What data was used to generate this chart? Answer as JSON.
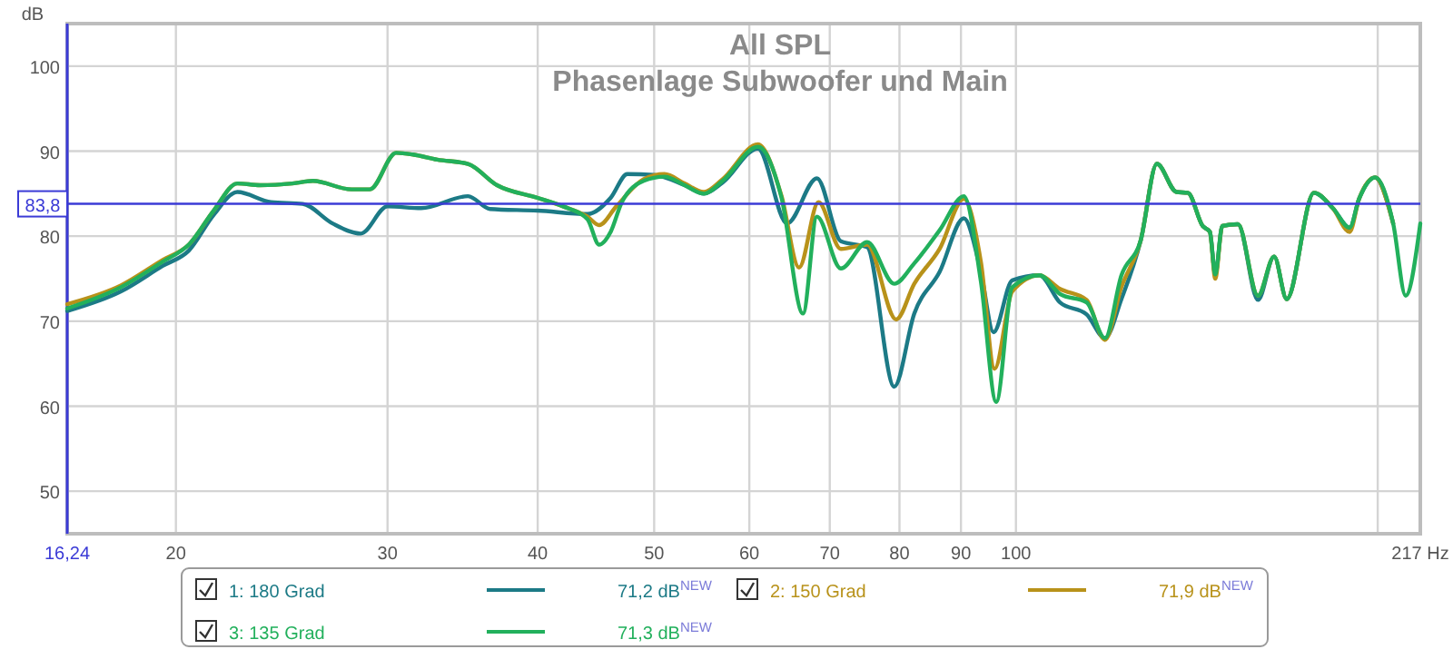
{
  "chart_data": {
    "type": "line",
    "title": "All SPL",
    "subtitle": "Phasenlage Subwoofer und Main",
    "ylabel": "dB",
    "log": "x",
    "xlim": [
      16.24,
      217
    ],
    "ylim": [
      45,
      105
    ],
    "xticks": [
      {
        "value": 16.24,
        "label": "16,24"
      },
      20,
      30,
      40,
      50,
      60,
      70,
      80,
      90,
      100,
      {
        "value": 200,
        "label": null
      },
      {
        "value": 217,
        "label": "217 Hz"
      }
    ],
    "yticks": [
      50,
      60,
      70,
      80,
      90,
      100
    ],
    "grid": true,
    "legend": "bottom",
    "line_style": "solid",
    "marker": "none",
    "ref_lines": [
      {
        "axis": "y",
        "value": 83.8,
        "label": "83,8",
        "color": "#3b3bd6"
      }
    ],
    "annotations": [
      "71,2 dB$^{NEW}$",
      "71,9 dB$^{NEW}$",
      "71,3 dB$^{NEW}$"
    ],
    "series": [
      {
        "name": "1: 180 Grad",
        "color": "#1c7a86",
        "x": [
          16.24,
          18,
          19.5,
          20.5,
          21.5,
          22.5,
          24,
          25.5,
          27,
          28.5,
          30,
          32,
          35,
          36.5,
          40,
          44,
          46,
          47.5,
          50,
          53,
          55,
          57,
          61,
          64.5,
          68.3,
          71.5,
          75.2,
          79.2,
          82.3,
          86.4,
          90.5,
          93.5,
          95.8,
          99.3,
          104.6,
          108.8,
          114.5,
          118.6,
          122.4,
          127,
          131,
          136,
          139,
          143,
          145,
          146.5,
          148.5,
          153,
          159,
          164,
          168,
          177,
          183.5,
          189.5,
          193,
          199,
          206
        ],
        "values": [
          71.2,
          73.5,
          76.5,
          78.3,
          82.5,
          85.2,
          84,
          83.8,
          81.5,
          80.3,
          83.5,
          83.3,
          84.7,
          83.2,
          83,
          82.6,
          84.5,
          87.3,
          87.2,
          86,
          85,
          86.3,
          90.3,
          81.5,
          86.8,
          79.4,
          78.7,
          62.3,
          70.9,
          75.8,
          82.1,
          75.8,
          68.7,
          74.8,
          75.4,
          72.2,
          70.8,
          68,
          72.6,
          79.5,
          88.5,
          85.2,
          85.1,
          81.2,
          80.5,
          75.5,
          81.2,
          81.4,
          72.5,
          77.6,
          72.6,
          85.1,
          83.3,
          81,
          84.4,
          86.9,
          81.5
        ]
      },
      {
        "name": "2: 150 Grad",
        "color": "#b8921a",
        "x": [
          16.24,
          18,
          19.5,
          20.5,
          21.5,
          22.5,
          23.5,
          25,
          26,
          28,
          29,
          30.5,
          31.5,
          33,
          35,
          37,
          40,
          42,
          44,
          45,
          46.5,
          49,
          51,
          53,
          55,
          57,
          61,
          63.8,
          66,
          68.5,
          71.5,
          75.2,
          79.5,
          82.3,
          86.4,
          90.5,
          93.5,
          96,
          99.3,
          104.6,
          108.8,
          114.5,
          118.6,
          122.4,
          127,
          131,
          136,
          139,
          143,
          145,
          146.5,
          148.5,
          153,
          159,
          164,
          168,
          177,
          183.5,
          189.5,
          193,
          199,
          206
        ],
        "values": [
          72,
          74.2,
          77.2,
          79,
          83,
          86.2,
          86,
          86.2,
          86.5,
          85.5,
          85.5,
          89.8,
          89.6,
          89,
          88.5,
          86,
          84.5,
          83.5,
          82.3,
          81.3,
          83.5,
          86.7,
          87.3,
          86.2,
          85.2,
          86.7,
          90.8,
          84.8,
          76.3,
          84,
          78.5,
          79,
          70.2,
          74.4,
          78.5,
          84.4,
          77,
          64.4,
          73.5,
          75.4,
          73.8,
          72.5,
          67.8,
          74,
          79.5,
          88.5,
          85.2,
          85.1,
          81.2,
          80.5,
          75,
          81.2,
          81.4,
          73,
          77.6,
          72.6,
          85.1,
          83.3,
          80.5,
          84.4,
          86.9,
          81.5
        ]
      },
      {
        "name": "3: 135 Grad",
        "color": "#22b05c",
        "x": [
          16.24,
          18,
          19.5,
          20.5,
          21.5,
          22.5,
          23.5,
          25,
          26,
          28,
          29,
          30.5,
          31.5,
          33,
          35,
          37,
          40,
          42,
          44,
          45,
          46,
          47,
          49,
          51,
          53,
          55,
          57,
          61,
          63.8,
          66.5,
          68.3,
          71.5,
          75.2,
          79.2,
          82.3,
          86.4,
          90.5,
          93.5,
          96.3,
          99.3,
          104.6,
          108.8,
          114.5,
          118.6,
          122.4,
          127,
          131,
          136,
          139,
          143,
          145,
          146.5,
          148.5,
          153,
          159,
          164,
          168,
          177,
          183.5,
          189.5,
          193,
          199,
          206,
          211,
          217
        ],
        "values": [
          71.5,
          74,
          77,
          79,
          83,
          86.2,
          86,
          86.2,
          86.5,
          85.5,
          85.5,
          89.8,
          89.6,
          89,
          88.5,
          86,
          84.5,
          83.5,
          82,
          79,
          80.5,
          84,
          86.5,
          87,
          86,
          85,
          86.5,
          90.5,
          84.6,
          70.9,
          82.3,
          76.2,
          79.3,
          74.4,
          76.8,
          80.7,
          84.7,
          74.7,
          60.5,
          74,
          75.4,
          73.2,
          72.2,
          68,
          75.4,
          79.5,
          88.5,
          85.2,
          85.1,
          81.2,
          80.5,
          75.5,
          81.2,
          81.4,
          73,
          77.6,
          72.6,
          85.1,
          83.3,
          81,
          84.4,
          86.9,
          81.5,
          73,
          81.5
        ]
      }
    ]
  }
}
